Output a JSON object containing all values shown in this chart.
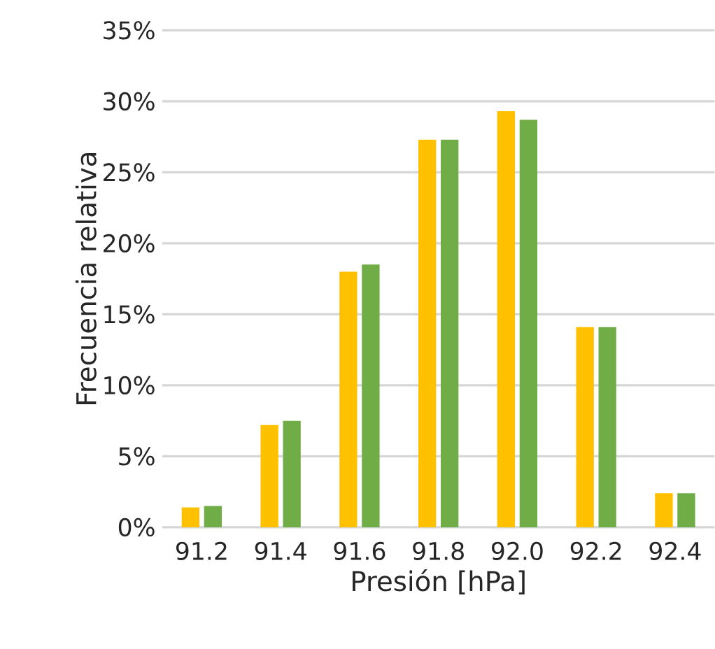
{
  "chart_data": {
    "type": "bar",
    "xlabel": "Presión [hPa]",
    "ylabel": "Frecuencia relativa",
    "categories": [
      "91.2",
      "91.4",
      "91.6",
      "91.8",
      "92.0",
      "92.2",
      "92.4"
    ],
    "series": [
      {
        "color": "#ffc000",
        "values": [
          1.4,
          7.2,
          18.0,
          27.3,
          29.3,
          14.1,
          2.4
        ]
      },
      {
        "color": "#70ad47",
        "values": [
          1.5,
          7.5,
          18.5,
          27.3,
          28.7,
          14.1,
          2.4
        ]
      }
    ],
    "ylim": [
      0,
      35
    ],
    "yticks": [
      {
        "value": 0,
        "label": "0%"
      },
      {
        "value": 5,
        "label": "5%"
      },
      {
        "value": 10,
        "label": "10%"
      },
      {
        "value": 15,
        "label": "15%"
      },
      {
        "value": 20,
        "label": "20%"
      },
      {
        "value": 25,
        "label": "25%"
      },
      {
        "value": 30,
        "label": "30%"
      },
      {
        "value": 35,
        "label": "35%"
      }
    ],
    "grid": "y"
  }
}
